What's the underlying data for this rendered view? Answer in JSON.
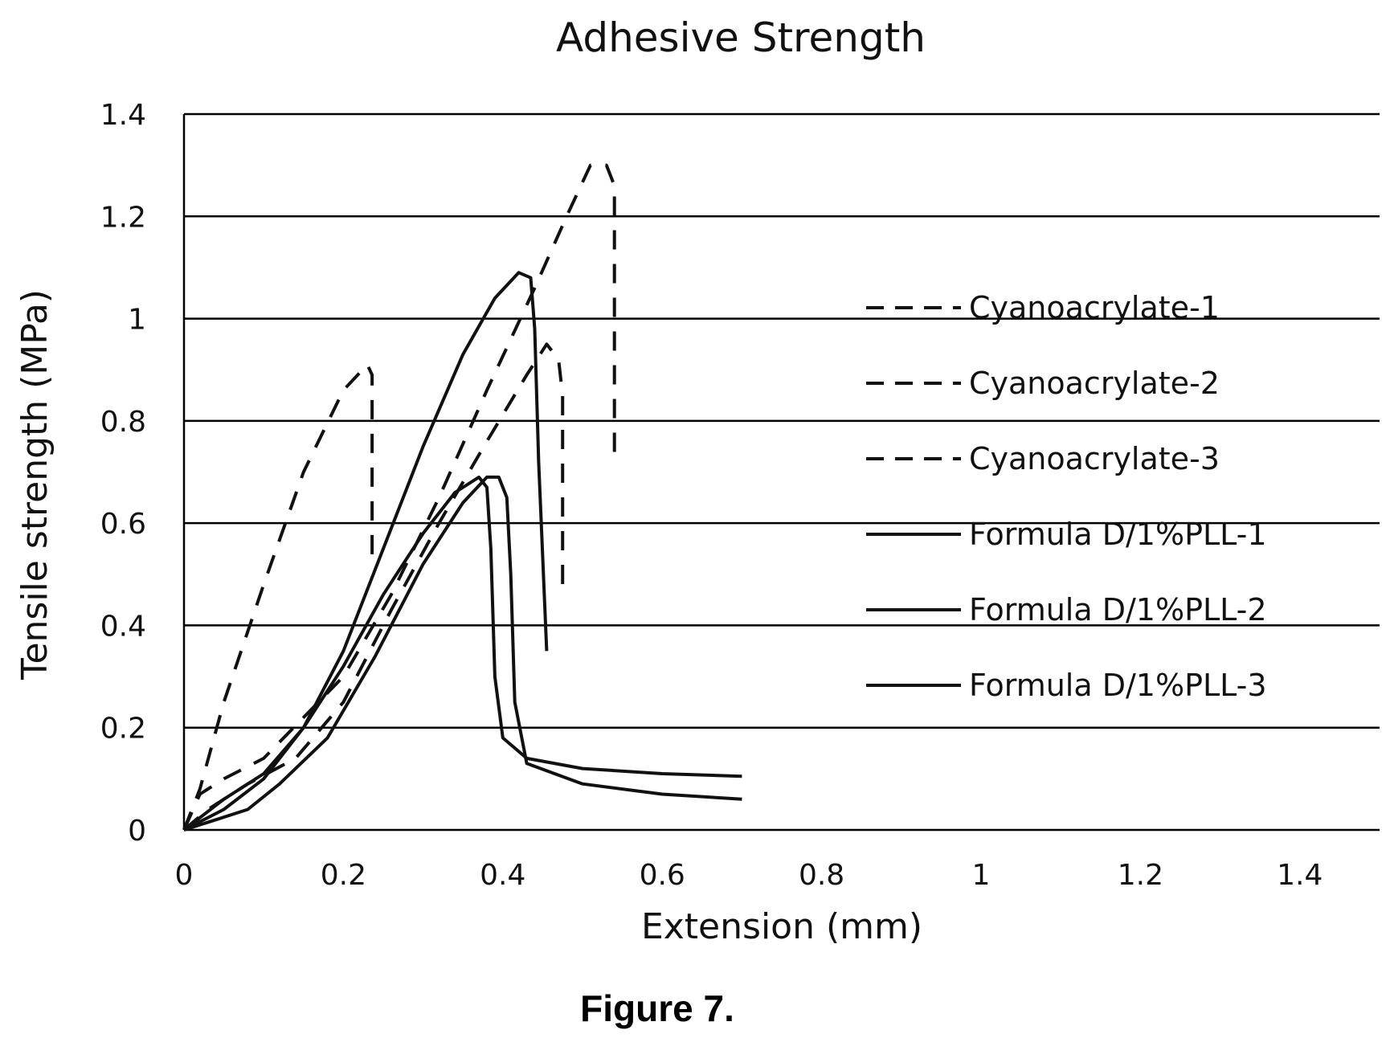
{
  "chart_data": {
    "type": "line",
    "title": "Adhesive Strength",
    "xlabel": "Extension (mm)",
    "ylabel": "Tensile strength (MPa)",
    "xlim": [
      0,
      1.5
    ],
    "ylim": [
      0,
      1.4
    ],
    "xticks": [
      0,
      0.2,
      0.4,
      0.6,
      0.8,
      1,
      1.2,
      1.4
    ],
    "xtick_labels": [
      "0",
      "0.2",
      "0.4",
      "0.6",
      "0.8",
      "1",
      "1.2",
      "1.4"
    ],
    "yticks": [
      0,
      0.2,
      0.4,
      0.6,
      0.8,
      1,
      1.2,
      1.4
    ],
    "ytick_labels": [
      "0",
      "0.2",
      "0.4",
      "0.6",
      "0.8",
      "1",
      "1.2",
      "1.4"
    ],
    "grid": "horizontal",
    "legend_position": "right",
    "series": [
      {
        "name": "Cyanoacrylate-1",
        "style": "dashed",
        "x": [
          0,
          0.02,
          0.05,
          0.1,
          0.15,
          0.2,
          0.26,
          0.32,
          0.38,
          0.44,
          0.48,
          0.51,
          0.53,
          0.54,
          0.54
        ],
        "y": [
          0,
          0.07,
          0.1,
          0.14,
          0.22,
          0.3,
          0.46,
          0.65,
          0.86,
          1.06,
          1.2,
          1.3,
          1.3,
          1.26,
          0.73
        ]
      },
      {
        "name": "Cyanoacrylate-2",
        "style": "dashed",
        "x": [
          0,
          0.02,
          0.05,
          0.1,
          0.15,
          0.2,
          0.23,
          0.236,
          0.236
        ],
        "y": [
          0,
          0.08,
          0.25,
          0.48,
          0.7,
          0.86,
          0.91,
          0.89,
          0.52
        ]
      },
      {
        "name": "Cyanoacrylate-3",
        "style": "dashed",
        "x": [
          0,
          0.03,
          0.08,
          0.14,
          0.2,
          0.26,
          0.32,
          0.38,
          0.43,
          0.455,
          0.47,
          0.475,
          0.475
        ],
        "y": [
          0,
          0.04,
          0.09,
          0.14,
          0.25,
          0.43,
          0.6,
          0.76,
          0.89,
          0.95,
          0.92,
          0.85,
          0.48
        ]
      },
      {
        "name": "Formula D/1%PLL-1",
        "style": "solid",
        "x": [
          0,
          0.05,
          0.1,
          0.15,
          0.2,
          0.25,
          0.3,
          0.35,
          0.39,
          0.42,
          0.435,
          0.44,
          0.445,
          0.455
        ],
        "y": [
          0,
          0.04,
          0.1,
          0.2,
          0.35,
          0.55,
          0.75,
          0.93,
          1.04,
          1.09,
          1.08,
          0.98,
          0.72,
          0.35
        ]
      },
      {
        "name": "Formula D/1%PLL-2",
        "style": "solid",
        "x": [
          0,
          0.05,
          0.1,
          0.15,
          0.2,
          0.25,
          0.3,
          0.34,
          0.37,
          0.38,
          0.385,
          0.39,
          0.4,
          0.43,
          0.5,
          0.6,
          0.7
        ],
        "y": [
          0,
          0.06,
          0.11,
          0.2,
          0.32,
          0.46,
          0.58,
          0.66,
          0.69,
          0.67,
          0.55,
          0.3,
          0.18,
          0.14,
          0.12,
          0.11,
          0.105
        ]
      },
      {
        "name": "Formula D/1%PLL-3",
        "style": "solid",
        "x": [
          0,
          0.04,
          0.08,
          0.12,
          0.18,
          0.24,
          0.3,
          0.35,
          0.38,
          0.395,
          0.405,
          0.41,
          0.415,
          0.43,
          0.5,
          0.6,
          0.7
        ],
        "y": [
          0,
          0.02,
          0.04,
          0.09,
          0.18,
          0.34,
          0.52,
          0.64,
          0.69,
          0.69,
          0.65,
          0.5,
          0.25,
          0.13,
          0.09,
          0.07,
          0.06
        ]
      }
    ]
  },
  "caption": "Figure 7."
}
